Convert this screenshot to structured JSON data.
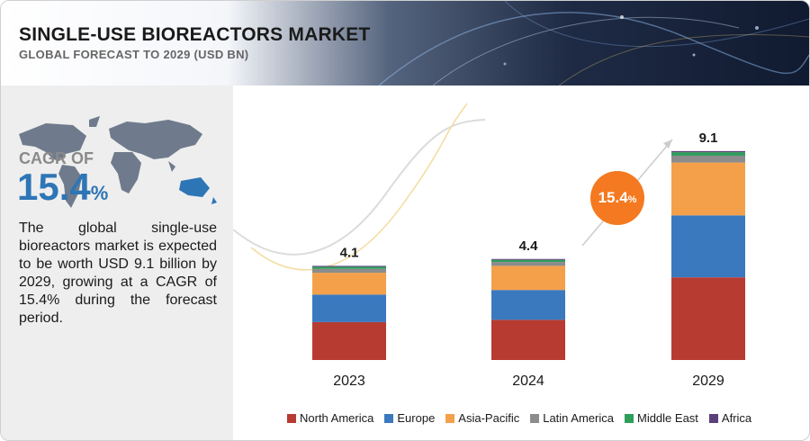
{
  "header": {
    "title": "SINGLE-USE BIOREACTORS MARKET",
    "subtitle": "GLOBAL FORECAST TO 2029 (USD BN)"
  },
  "sidebar": {
    "cagr_label": "CAGR OF",
    "cagr_value": "15.4",
    "cagr_unit": "%",
    "description": "The global single-use bioreactors market is expected to be worth USD 9.1 billion by 2029, growing at a CAGR of 15.4% during the forecast period."
  },
  "badge": {
    "value": "15.4",
    "unit": "%"
  },
  "colors": {
    "north_america": "#b83b32",
    "europe": "#3b79bf",
    "asia_pacific": "#f4a04a",
    "latin_america": "#8c8c8c",
    "middle_east": "#2f9e5b",
    "africa": "#5b3f7a",
    "badge": "#f47920"
  },
  "chart_data": {
    "type": "bar",
    "stacked": true,
    "categories": [
      "2023",
      "2024",
      "2029"
    ],
    "totals": [
      4.1,
      4.4,
      9.1
    ],
    "total_labels": [
      "4.1",
      "4.4",
      "9.1"
    ],
    "ylim": [
      0,
      9.8
    ],
    "grid": false,
    "legend_position": "bottom",
    "series": [
      {
        "name": "North America",
        "values": [
          1.65,
          1.75,
          3.6
        ],
        "color": "#b83b32"
      },
      {
        "name": "Europe",
        "values": [
          1.2,
          1.3,
          2.7
        ],
        "color": "#3b79bf"
      },
      {
        "name": "Asia-Pacific",
        "values": [
          0.95,
          1.05,
          2.3
        ],
        "color": "#f4a04a"
      },
      {
        "name": "Latin America",
        "values": [
          0.17,
          0.17,
          0.3
        ],
        "color": "#8c8c8c"
      },
      {
        "name": "Middle East",
        "values": [
          0.09,
          0.09,
          0.15
        ],
        "color": "#2f9e5b"
      },
      {
        "name": "Africa",
        "values": [
          0.04,
          0.04,
          0.05
        ],
        "color": "#5b3f7a"
      }
    ],
    "annotation": "15.4%"
  }
}
